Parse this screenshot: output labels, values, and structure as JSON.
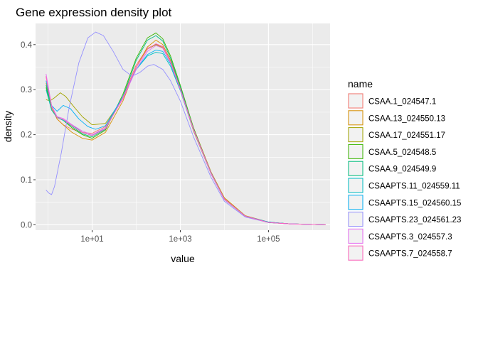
{
  "chart_data": {
    "type": "line",
    "title": "Gene expression density plot",
    "xlabel": "value",
    "ylabel": "density",
    "x_scale": "log10",
    "x_ticks": [
      "1e+01",
      "1e+03",
      "1e+05"
    ],
    "x_tick_values": [
      10,
      1000,
      100000
    ],
    "xlim": [
      0.52,
      2500000
    ],
    "ylim": [
      -0.012,
      0.447
    ],
    "y_ticks": [
      "0.0",
      "0.1",
      "0.2",
      "0.3",
      "0.4"
    ],
    "y_tick_values": [
      0,
      0.1,
      0.2,
      0.3,
      0.4
    ],
    "grid": true,
    "legend_title": "name",
    "legend_position": "right",
    "series": [
      {
        "name": "CSAA.1_024547.1",
        "color": "#F8766D",
        "points": [
          [
            0.9,
            0.33
          ],
          [
            1.2,
            0.265
          ],
          [
            1.6,
            0.235
          ],
          [
            2.2,
            0.222
          ],
          [
            3.5,
            0.212
          ],
          [
            6,
            0.205
          ],
          [
            10,
            0.203
          ],
          [
            20,
            0.218
          ],
          [
            50,
            0.285
          ],
          [
            100,
            0.355
          ],
          [
            180,
            0.392
          ],
          [
            280,
            0.401
          ],
          [
            400,
            0.395
          ],
          [
            600,
            0.36
          ],
          [
            1000,
            0.3
          ],
          [
            2000,
            0.21
          ],
          [
            5000,
            0.115
          ],
          [
            10000,
            0.058
          ],
          [
            30000,
            0.02
          ],
          [
            100000,
            0.006
          ],
          [
            300000,
            0.002
          ],
          [
            2000000,
            0
          ]
        ]
      },
      {
        "name": "CSAA.13_024550.13",
        "color": "#D89000",
        "points": [
          [
            0.9,
            0.315
          ],
          [
            1.2,
            0.26
          ],
          [
            1.6,
            0.235
          ],
          [
            2.2,
            0.222
          ],
          [
            3.5,
            0.205
          ],
          [
            6,
            0.192
          ],
          [
            10,
            0.188
          ],
          [
            20,
            0.205
          ],
          [
            50,
            0.275
          ],
          [
            100,
            0.35
          ],
          [
            180,
            0.395
          ],
          [
            280,
            0.41
          ],
          [
            400,
            0.4
          ],
          [
            600,
            0.365
          ],
          [
            1000,
            0.305
          ],
          [
            2000,
            0.215
          ],
          [
            5000,
            0.117
          ],
          [
            10000,
            0.06
          ],
          [
            30000,
            0.02
          ],
          [
            100000,
            0.006
          ],
          [
            300000,
            0.002
          ],
          [
            2000000,
            0
          ]
        ]
      },
      {
        "name": "CSAA.17_024551.17",
        "color": "#A3A500",
        "points": [
          [
            0.9,
            0.278
          ],
          [
            1.1,
            0.275
          ],
          [
            1.4,
            0.282
          ],
          [
            1.9,
            0.293
          ],
          [
            2.5,
            0.285
          ],
          [
            4,
            0.26
          ],
          [
            6,
            0.24
          ],
          [
            10,
            0.222
          ],
          [
            20,
            0.225
          ],
          [
            50,
            0.28
          ],
          [
            100,
            0.35
          ],
          [
            180,
            0.39
          ],
          [
            280,
            0.4
          ],
          [
            400,
            0.393
          ],
          [
            600,
            0.36
          ],
          [
            1000,
            0.3
          ],
          [
            2000,
            0.208
          ],
          [
            5000,
            0.113
          ],
          [
            10000,
            0.057
          ],
          [
            30000,
            0.019
          ],
          [
            100000,
            0.006
          ],
          [
            300000,
            0.002
          ],
          [
            2000000,
            0
          ]
        ]
      },
      {
        "name": "CSAA.5_024548.5",
        "color": "#39B600",
        "points": [
          [
            0.9,
            0.305
          ],
          [
            1.2,
            0.255
          ],
          [
            1.6,
            0.238
          ],
          [
            2.2,
            0.232
          ],
          [
            3.5,
            0.215
          ],
          [
            6,
            0.2
          ],
          [
            10,
            0.192
          ],
          [
            20,
            0.21
          ],
          [
            50,
            0.29
          ],
          [
            100,
            0.37
          ],
          [
            180,
            0.415
          ],
          [
            280,
            0.426
          ],
          [
            400,
            0.413
          ],
          [
            600,
            0.375
          ],
          [
            1000,
            0.31
          ],
          [
            2000,
            0.215
          ],
          [
            5000,
            0.114
          ],
          [
            10000,
            0.056
          ],
          [
            30000,
            0.019
          ],
          [
            100000,
            0.005
          ],
          [
            300000,
            0.002
          ],
          [
            2000000,
            0
          ]
        ]
      },
      {
        "name": "CSAA.9_024549.9",
        "color": "#00BF7D",
        "points": [
          [
            0.9,
            0.31
          ],
          [
            1.2,
            0.262
          ],
          [
            1.6,
            0.24
          ],
          [
            2.2,
            0.232
          ],
          [
            3.5,
            0.218
          ],
          [
            6,
            0.202
          ],
          [
            10,
            0.195
          ],
          [
            20,
            0.212
          ],
          [
            50,
            0.285
          ],
          [
            100,
            0.365
          ],
          [
            180,
            0.41
          ],
          [
            280,
            0.42
          ],
          [
            400,
            0.408
          ],
          [
            600,
            0.37
          ],
          [
            1000,
            0.306
          ],
          [
            2000,
            0.212
          ],
          [
            5000,
            0.113
          ],
          [
            10000,
            0.056
          ],
          [
            30000,
            0.019
          ],
          [
            100000,
            0.005
          ],
          [
            300000,
            0.002
          ],
          [
            2000000,
            0
          ]
        ]
      },
      {
        "name": "CSAAPTS.11_024559.11",
        "color": "#00BFC4",
        "points": [
          [
            0.9,
            0.3
          ],
          [
            1.2,
            0.255
          ],
          [
            1.6,
            0.238
          ],
          [
            2.2,
            0.232
          ],
          [
            3.5,
            0.222
          ],
          [
            6,
            0.205
          ],
          [
            10,
            0.198
          ],
          [
            20,
            0.215
          ],
          [
            50,
            0.285
          ],
          [
            100,
            0.345
          ],
          [
            180,
            0.375
          ],
          [
            280,
            0.383
          ],
          [
            400,
            0.38
          ],
          [
            600,
            0.352
          ],
          [
            1000,
            0.298
          ],
          [
            2000,
            0.21
          ],
          [
            5000,
            0.114
          ],
          [
            10000,
            0.057
          ],
          [
            30000,
            0.019
          ],
          [
            100000,
            0.006
          ],
          [
            300000,
            0.002
          ],
          [
            2000000,
            0
          ]
        ]
      },
      {
        "name": "CSAAPTS.15_024560.15",
        "color": "#00B0F6",
        "points": [
          [
            0.9,
            0.32
          ],
          [
            1.2,
            0.265
          ],
          [
            1.6,
            0.252
          ],
          [
            2.2,
            0.265
          ],
          [
            3.2,
            0.258
          ],
          [
            5,
            0.235
          ],
          [
            8,
            0.218
          ],
          [
            12,
            0.212
          ],
          [
            20,
            0.22
          ],
          [
            50,
            0.285
          ],
          [
            100,
            0.345
          ],
          [
            180,
            0.378
          ],
          [
            280,
            0.388
          ],
          [
            400,
            0.385
          ],
          [
            600,
            0.357
          ],
          [
            1000,
            0.3
          ],
          [
            2000,
            0.212
          ],
          [
            5000,
            0.115
          ],
          [
            10000,
            0.057
          ],
          [
            30000,
            0.019
          ],
          [
            100000,
            0.006
          ],
          [
            300000,
            0.002
          ],
          [
            2000000,
            0
          ]
        ]
      },
      {
        "name": "CSAAPTS.23_024561.23",
        "color": "#9590FF",
        "points": [
          [
            0.9,
            0.077
          ],
          [
            1.05,
            0.07
          ],
          [
            1.2,
            0.067
          ],
          [
            1.4,
            0.085
          ],
          [
            2,
            0.16
          ],
          [
            3,
            0.26
          ],
          [
            5,
            0.36
          ],
          [
            8,
            0.415
          ],
          [
            12,
            0.428
          ],
          [
            18,
            0.42
          ],
          [
            30,
            0.385
          ],
          [
            50,
            0.345
          ],
          [
            80,
            0.33
          ],
          [
            120,
            0.338
          ],
          [
            180,
            0.352
          ],
          [
            250,
            0.356
          ],
          [
            400,
            0.345
          ],
          [
            600,
            0.32
          ],
          [
            1000,
            0.275
          ],
          [
            2000,
            0.195
          ],
          [
            5000,
            0.105
          ],
          [
            10000,
            0.052
          ],
          [
            30000,
            0.017
          ],
          [
            100000,
            0.005
          ],
          [
            300000,
            0.002
          ],
          [
            2000000,
            0
          ]
        ]
      },
      {
        "name": "CSAAPTS.3_024557.3",
        "color": "#E76BF3",
        "points": [
          [
            0.9,
            0.335
          ],
          [
            1.2,
            0.265
          ],
          [
            1.6,
            0.24
          ],
          [
            2.2,
            0.236
          ],
          [
            3.5,
            0.222
          ],
          [
            6,
            0.208
          ],
          [
            10,
            0.2
          ],
          [
            20,
            0.215
          ],
          [
            50,
            0.28
          ],
          [
            100,
            0.345
          ],
          [
            180,
            0.385
          ],
          [
            280,
            0.398
          ],
          [
            400,
            0.392
          ],
          [
            600,
            0.36
          ],
          [
            1000,
            0.3
          ],
          [
            2000,
            0.21
          ],
          [
            5000,
            0.113
          ],
          [
            10000,
            0.056
          ],
          [
            30000,
            0.019
          ],
          [
            100000,
            0.005
          ],
          [
            300000,
            0.002
          ],
          [
            2000000,
            0
          ]
        ]
      },
      {
        "name": "CSAAPTS.7_024558.7",
        "color": "#FF62BC",
        "points": [
          [
            0.9,
            0.328
          ],
          [
            1.2,
            0.262
          ],
          [
            1.6,
            0.238
          ],
          [
            2.2,
            0.234
          ],
          [
            3.5,
            0.22
          ],
          [
            6,
            0.205
          ],
          [
            10,
            0.198
          ],
          [
            20,
            0.213
          ],
          [
            50,
            0.283
          ],
          [
            100,
            0.35
          ],
          [
            180,
            0.39
          ],
          [
            280,
            0.402
          ],
          [
            400,
            0.396
          ],
          [
            600,
            0.362
          ],
          [
            1000,
            0.302
          ],
          [
            2000,
            0.212
          ],
          [
            5000,
            0.114
          ],
          [
            10000,
            0.057
          ],
          [
            30000,
            0.019
          ],
          [
            100000,
            0.005
          ],
          [
            300000,
            0.002
          ],
          [
            2000000,
            0
          ]
        ]
      }
    ]
  }
}
